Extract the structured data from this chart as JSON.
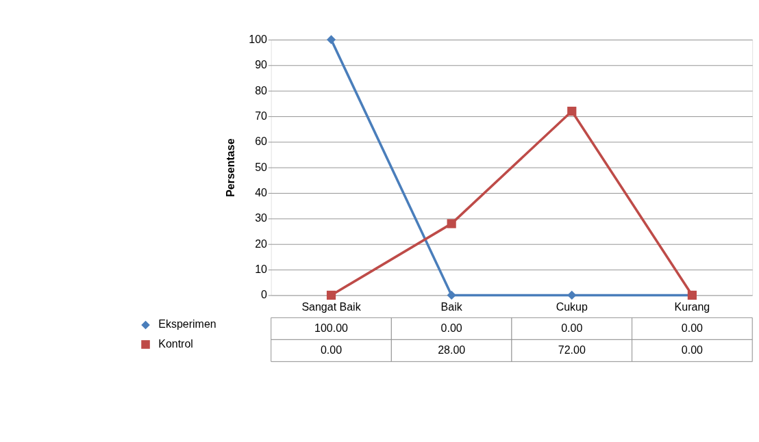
{
  "chart_data": {
    "type": "line",
    "ylabel": "Persentase",
    "categories": [
      "Sangat Baik",
      "Baik",
      "Cukup",
      "Kurang"
    ],
    "series": [
      {
        "name": "Eksperimen",
        "color": "#4a7ebb",
        "marker": "diamond",
        "values": [
          100,
          0,
          0,
          0
        ],
        "value_labels": [
          "100.00",
          "0.00",
          "0.00",
          "0.00"
        ]
      },
      {
        "name": "Kontrol",
        "color": "#be4b48",
        "marker": "square",
        "values": [
          0,
          28,
          72,
          0
        ],
        "value_labels": [
          "0.00",
          "28.00",
          "72.00",
          "0.00"
        ]
      }
    ],
    "ylim": [
      0,
      100
    ],
    "yticks": [
      0,
      10,
      20,
      30,
      40,
      50,
      60,
      70,
      80,
      90,
      100
    ],
    "grid": "y",
    "legend": "bottom left",
    "line_style": "solid"
  }
}
